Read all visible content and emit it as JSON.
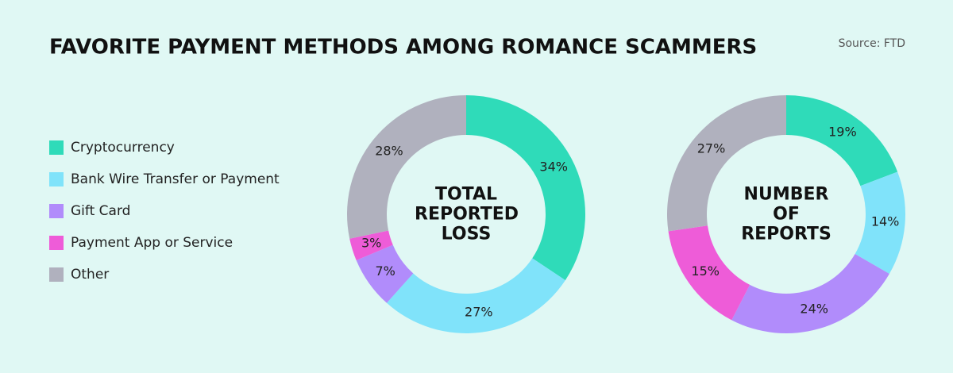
{
  "title": "FAVORITE PAYMENT METHODS AMONG ROMANCE SCAMMERS",
  "source": "Source: FTD",
  "chart_data": [
    {
      "type": "pie",
      "title": "TOTAL REPORTED LOSS",
      "categories": [
        "Cryptocurrency",
        "Bank Wire Transfer or Payment",
        "Gift Card",
        "Payment App or Service",
        "Other"
      ],
      "values": [
        34,
        27,
        7,
        3,
        28
      ],
      "value_labels": [
        "34%",
        "27%",
        "7%",
        "3%",
        "28%"
      ],
      "colors": [
        "#2fdbb9",
        "#80e3fa",
        "#b18cfb",
        "#ee5cd8",
        "#b0b1be"
      ]
    },
    {
      "type": "pie",
      "title": "NUMBER OF REPORTS",
      "categories": [
        "Cryptocurrency",
        "Bank Wire Transfer or Payment",
        "Gift Card",
        "Payment App or Service",
        "Other"
      ],
      "values": [
        19,
        14,
        24,
        15,
        27
      ],
      "value_labels": [
        "19%",
        "14%",
        "24%",
        "15%",
        "27%"
      ],
      "colors": [
        "#2fdbb9",
        "#80e3fa",
        "#b18cfb",
        "#ee5cd8",
        "#b0b1be"
      ]
    }
  ]
}
